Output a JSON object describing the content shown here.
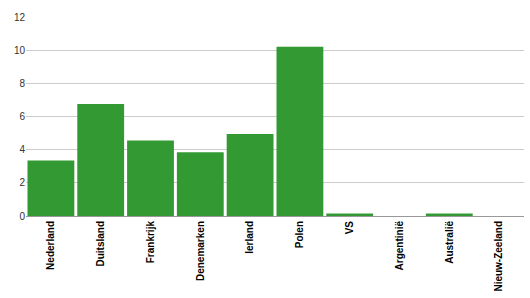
{
  "chart_data": {
    "type": "bar",
    "categories": [
      "Nederland",
      "Duitsland",
      "Frankrijk",
      "Denemarken",
      "Ierland",
      "Polen",
      "VS",
      "Argentinië",
      "Australië",
      "Nieuw-Zeeland"
    ],
    "values": [
      3.35,
      6.75,
      4.55,
      3.85,
      4.95,
      10.2,
      0.15,
      0,
      0.15,
      0
    ],
    "color": "#339933",
    "ylim": [
      0,
      12
    ],
    "yticks": [
      0,
      2,
      4,
      6,
      8,
      10,
      12
    ],
    "grid": true
  }
}
